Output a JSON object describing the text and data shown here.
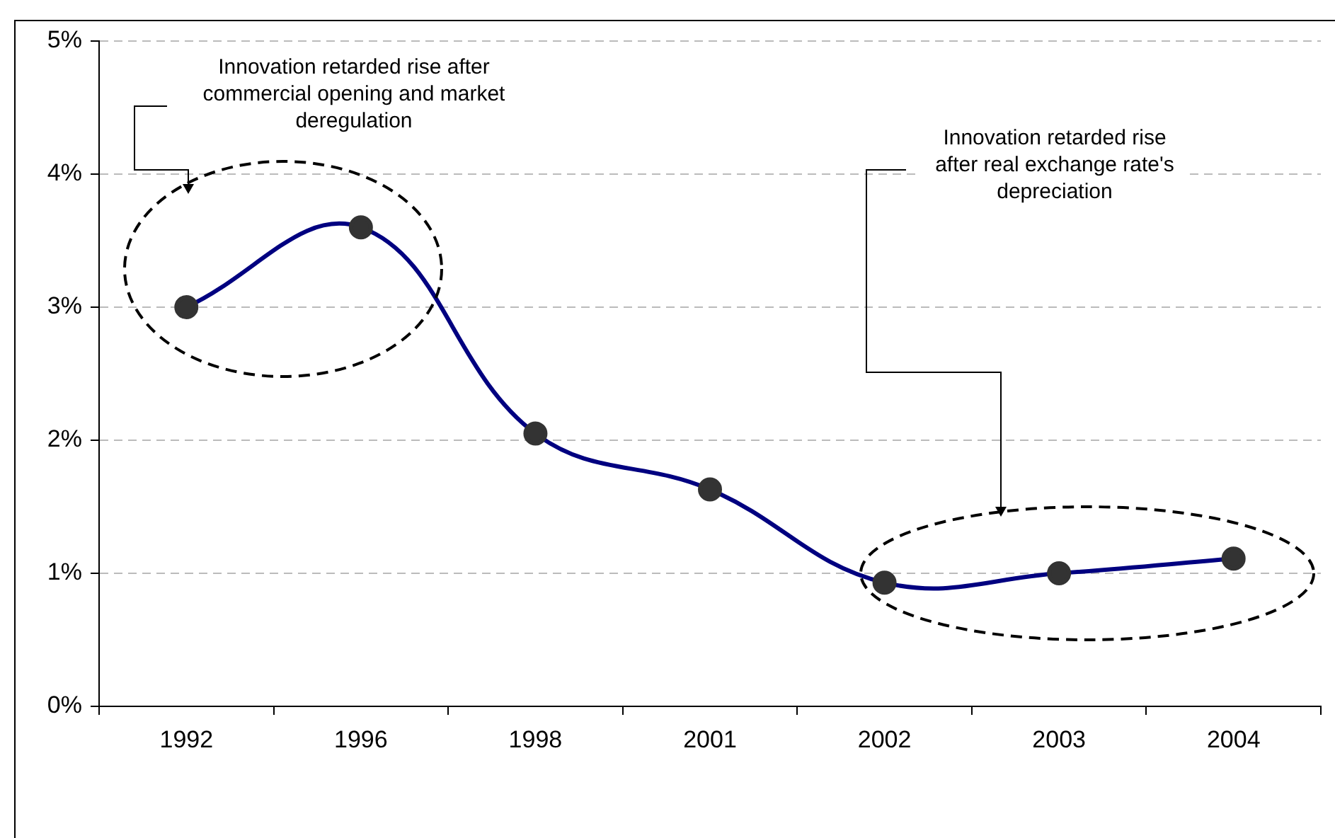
{
  "chart_data": {
    "type": "line",
    "categories": [
      "1992",
      "1996",
      "1998",
      "2001",
      "2002",
      "2003",
      "2004"
    ],
    "series": [
      {
        "color": "#000080",
        "values": [
          3.0,
          3.6,
          2.05,
          1.63,
          0.93,
          1.0,
          1.11
        ]
      }
    ],
    "ylim": [
      0,
      5
    ],
    "yticks": [
      {
        "value": 0,
        "label": "0%"
      },
      {
        "value": 1,
        "label": "1%"
      },
      {
        "value": 2,
        "label": "2%"
      },
      {
        "value": 3,
        "label": "3%"
      },
      {
        "value": 4,
        "label": "4%"
      },
      {
        "value": 5,
        "label": "5%"
      }
    ],
    "grid": "y",
    "legend": false,
    "marker": "circle",
    "line_style": "solid",
    "annotations": [
      "Innovation retarded rise after commercial opening and market deregulation",
      "Innovation retarded rise after real exchange rate's depreciation"
    ]
  }
}
